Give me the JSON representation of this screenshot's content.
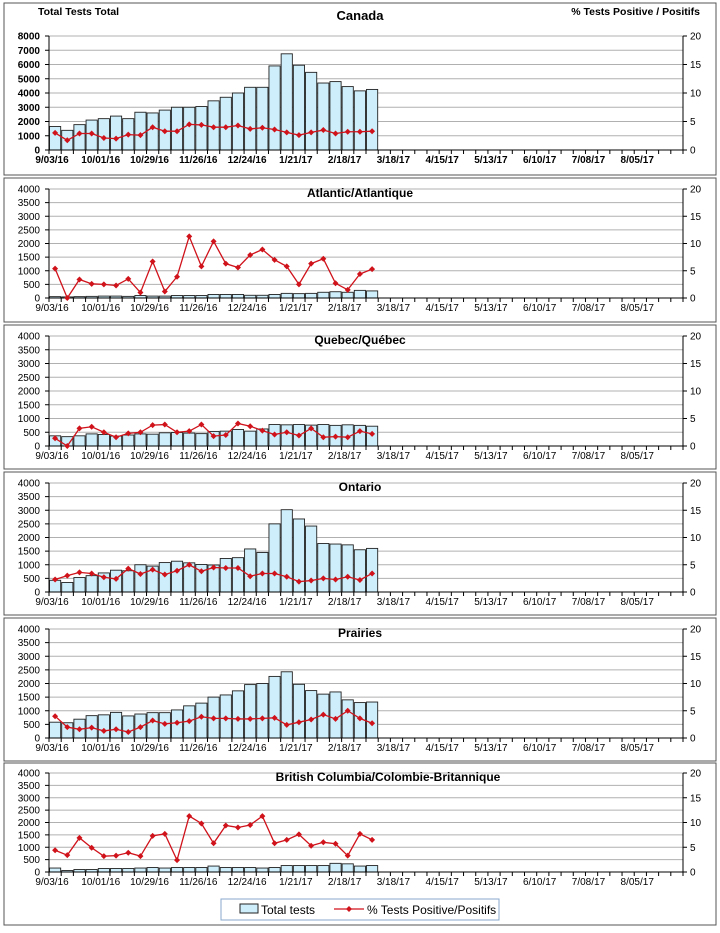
{
  "chart_data": {
    "type": "bar+line",
    "left_axis_title": "Total Tests Total",
    "right_axis_title": "% Tests Positive / Positifs",
    "x_tick_labels": [
      "9/03/16",
      "10/01/16",
      "10/29/16",
      "11/26/16",
      "12/24/16",
      "1/21/17",
      "2/18/17",
      "3/18/17",
      "4/15/17",
      "5/13/17",
      "6/10/17",
      "7/08/17",
      "8/05/17"
    ],
    "weeks_total": 52,
    "legend": {
      "bars": "Total tests",
      "line": "% Tests Positive/Positifs",
      "placement": "bottom-center"
    },
    "colors": {
      "bar_fill": "#cdeefa",
      "bar_stroke": "#222222",
      "line": "#d0121b",
      "grid": "#b0b0b0"
    },
    "panels": [
      {
        "title": "Canada",
        "ylim": [
          0,
          8000
        ],
        "yticks": [
          0,
          1000,
          2000,
          3000,
          4000,
          5000,
          6000,
          7000,
          8000
        ],
        "y2lim": [
          0,
          20
        ],
        "y2ticks": [
          0,
          5,
          10,
          15,
          20
        ],
        "total_tests": [
          1650,
          1380,
          1780,
          2100,
          2200,
          2380,
          2200,
          2650,
          2600,
          2800,
          3000,
          3000,
          3050,
          3450,
          3700,
          4000,
          4400,
          4400,
          5900,
          6750,
          5950,
          5450,
          4700,
          4800,
          4450,
          4150,
          4250
        ],
        "pct_positive": [
          3.0,
          1.7,
          2.9,
          2.9,
          2.1,
          2.0,
          2.7,
          2.6,
          4.0,
          3.3,
          3.3,
          4.5,
          4.4,
          4.0,
          4.0,
          4.3,
          3.7,
          3.9,
          3.6,
          3.1,
          2.6,
          3.1,
          3.5,
          2.9,
          3.2,
          3.2,
          3.3
        ]
      },
      {
        "title": "Atlantic/Atlantique",
        "ylim": [
          0,
          4000
        ],
        "yticks": [
          0,
          500,
          1000,
          1500,
          2000,
          2500,
          3000,
          3500,
          4000
        ],
        "y2lim": [
          0,
          20
        ],
        "y2ticks": [
          0,
          5,
          10,
          15,
          20
        ],
        "total_tests": [
          50,
          40,
          50,
          60,
          70,
          70,
          60,
          90,
          70,
          70,
          90,
          90,
          90,
          130,
          130,
          130,
          100,
          100,
          130,
          170,
          160,
          170,
          210,
          230,
          210,
          280,
          260
        ],
        "pct_positive": [
          5.4,
          0,
          3.4,
          2.6,
          2.5,
          2.3,
          3.5,
          1.0,
          6.7,
          1.2,
          3.9,
          11.3,
          5.8,
          10.4,
          6.3,
          5.6,
          7.9,
          8.9,
          7.0,
          5.8,
          2.5,
          6.3,
          7.2,
          2.7,
          1.5,
          4.4,
          5.3
        ]
      },
      {
        "title": "Quebec/Québec",
        "ylim": [
          0,
          4000
        ],
        "yticks": [
          0,
          500,
          1000,
          1500,
          2000,
          2500,
          3000,
          3500,
          4000
        ],
        "y2lim": [
          0,
          20
        ],
        "y2ticks": [
          0,
          5,
          10,
          15,
          20
        ],
        "total_tests": [
          370,
          340,
          370,
          440,
          420,
          360,
          400,
          440,
          430,
          480,
          490,
          470,
          450,
          530,
          540,
          600,
          540,
          620,
          780,
          770,
          780,
          760,
          780,
          750,
          770,
          750,
          720
        ],
        "pct_positive": [
          1.4,
          0,
          3.2,
          3.5,
          2.5,
          1.6,
          2.3,
          2.5,
          3.8,
          3.9,
          2.5,
          2.7,
          3.9,
          1.8,
          2.0,
          4.1,
          3.6,
          2.8,
          2.1,
          2.5,
          1.9,
          3.2,
          1.6,
          1.7,
          1.6,
          2.7,
          2.2
        ]
      },
      {
        "title": "Ontario",
        "ylim": [
          0,
          4000
        ],
        "yticks": [
          0,
          500,
          1000,
          1500,
          2000,
          2500,
          3000,
          3500,
          4000
        ],
        "y2lim": [
          0,
          20
        ],
        "y2ticks": [
          0,
          5,
          10,
          15,
          20
        ],
        "total_tests": [
          430,
          350,
          530,
          600,
          700,
          800,
          780,
          1000,
          950,
          1080,
          1130,
          1070,
          1010,
          990,
          1230,
          1260,
          1580,
          1450,
          2500,
          3020,
          2680,
          2420,
          1780,
          1760,
          1730,
          1550,
          1600
        ],
        "pct_positive": [
          2.3,
          3.0,
          3.6,
          3.4,
          2.7,
          2.4,
          4.3,
          3.3,
          4.1,
          3.2,
          3.9,
          5.0,
          3.8,
          4.5,
          4.4,
          4.4,
          2.9,
          3.4,
          3.4,
          2.8,
          1.9,
          2.1,
          2.5,
          2.3,
          2.8,
          2.2,
          3.4
        ]
      },
      {
        "title": "Prairies",
        "ylim": [
          0,
          4000
        ],
        "yticks": [
          0,
          500,
          1000,
          1500,
          2000,
          2500,
          3000,
          3500,
          4000
        ],
        "y2lim": [
          0,
          20
        ],
        "y2ticks": [
          0,
          5,
          10,
          15,
          20
        ],
        "total_tests": [
          580,
          560,
          690,
          820,
          850,
          940,
          810,
          880,
          930,
          930,
          1030,
          1180,
          1280,
          1500,
          1580,
          1730,
          1960,
          2000,
          2260,
          2430,
          1970,
          1740,
          1610,
          1690,
          1400,
          1300,
          1320
        ],
        "pct_positive": [
          4.0,
          2.0,
          1.6,
          1.9,
          1.3,
          1.6,
          1.1,
          2.0,
          3.2,
          2.6,
          2.8,
          3.1,
          3.9,
          3.6,
          3.6,
          3.5,
          3.5,
          3.6,
          3.7,
          2.4,
          2.9,
          3.4,
          4.3,
          3.5,
          5.0,
          3.6,
          2.7
        ]
      },
      {
        "title": "British Columbia/Colombie-Britannique",
        "ylim": [
          0,
          4000
        ],
        "yticks": [
          0,
          500,
          1000,
          1500,
          2000,
          2500,
          3000,
          3500,
          4000
        ],
        "y2lim": [
          0,
          20
        ],
        "y2ticks": [
          0,
          5,
          10,
          15,
          20
        ],
        "total_tests": [
          160,
          60,
          100,
          100,
          140,
          140,
          140,
          160,
          180,
          160,
          180,
          180,
          180,
          240,
          180,
          180,
          180,
          160,
          180,
          260,
          260,
          260,
          260,
          350,
          330,
          240,
          260
        ],
        "pct_positive": [
          4.4,
          3.4,
          6.9,
          4.9,
          3.2,
          3.3,
          3.9,
          3.2,
          7.3,
          7.7,
          2.4,
          11.3,
          9.8,
          5.8,
          9.4,
          9.0,
          9.5,
          11.3,
          5.8,
          6.5,
          7.6,
          5.3,
          6.0,
          5.7,
          3.3,
          7.7,
          6.5
        ]
      }
    ]
  }
}
